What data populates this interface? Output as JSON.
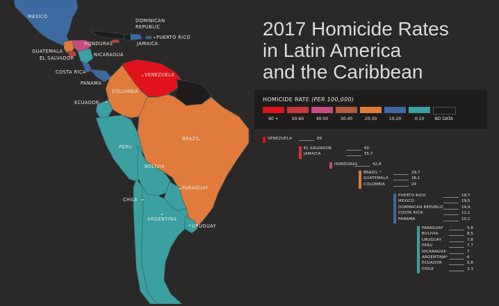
{
  "title": {
    "line1": "2017 Homicide Rates",
    "line2": "in Latin America",
    "line3": "and the Caribbean"
  },
  "legend": {
    "title_main": "HOMICIDE RATE",
    "title_unit": "(PER 100,000)",
    "items": [
      {
        "label": "60 +",
        "color": "#e0131b"
      },
      {
        "label": "50-60",
        "color": "#c83a35"
      },
      {
        "label": "40-50",
        "color": "#c74c7e"
      },
      {
        "label": "30-40",
        "color": "#b65a3f"
      },
      {
        "label": "20-30",
        "color": "#e07b3c"
      },
      {
        "label": "10-20",
        "color": "#3d6aa0"
      },
      {
        "label": "0-10",
        "color": "#3aa0a0"
      },
      {
        "label": "NO DATA",
        "color": "#1f1c1c"
      }
    ]
  },
  "map_labels": {
    "mexico": "MEXICO",
    "dominican_republic": "DOMINICAN\nREPUBLIC",
    "puerto_rico": "PUERTO RICO",
    "jamaica": "JAMAICA",
    "honduras": "HONDURAS",
    "guatemala": "GUATEMALA",
    "el_salvador": "EL SALVADOR",
    "nicaragua": "NICARAGUA",
    "costa_rica": "COSTA RICA",
    "panama": "PANAMA",
    "venezuela": "VENEZUELA",
    "colombia": "COLOMBIA",
    "ecuador": "ECUADOR",
    "brazil": "BRAZIL",
    "peru": "PERU",
    "bolivia": "BOLIVIA",
    "paraguay": "PARAGUAY",
    "chile": "CHILE",
    "argentina": "ARGENTINA",
    "uruguay": "URUGUAY"
  },
  "ranking": [
    {
      "color": "#e0131b",
      "entries": [
        {
          "name": "VENEZUELA",
          "value": "89"
        }
      ]
    },
    {
      "color": "#c83a35",
      "entries": [
        {
          "name": "EL SALVADOR",
          "value": "60"
        },
        {
          "name": "JAMAICA",
          "value": "55,7"
        }
      ]
    },
    {
      "color": "#c74c7e",
      "entries": [
        {
          "name": "HONDURAS",
          "value": "42,8"
        }
      ]
    },
    {
      "color": "#e07b3c",
      "entries": [
        {
          "name": "BRAZIL *",
          "value": "29,7"
        },
        {
          "name": "GUATEMALA",
          "value": "26,1"
        },
        {
          "name": "COLOMBIA",
          "value": "24"
        }
      ]
    },
    {
      "color": "#3d6aa0",
      "entries": [
        {
          "name": "PUERTO RICO",
          "value": "19,7"
        },
        {
          "name": "MEXICO",
          "value": "19,5"
        },
        {
          "name": "DOMINICAN REPUBLIC",
          "value": "14,9"
        },
        {
          "name": "COSTA RICA",
          "value": "12,1"
        },
        {
          "name": "PANAMA",
          "value": "10,2"
        }
      ]
    },
    {
      "color": "#3aa0a0",
      "entries": [
        {
          "name": "PARAGUAY",
          "value": "9,8"
        },
        {
          "name": "BOLIVIA",
          "value": "8,5"
        },
        {
          "name": "URUGUAY",
          "value": "7,8"
        },
        {
          "name": "PERU",
          "value": "7,7"
        },
        {
          "name": "NICARAGUA",
          "value": "7"
        },
        {
          "name": "ARGENTINA*",
          "value": "6"
        },
        {
          "name": "ECUADOR",
          "value": "5,8"
        },
        {
          "name": "CHILE",
          "value": "3.3"
        }
      ]
    }
  ]
}
